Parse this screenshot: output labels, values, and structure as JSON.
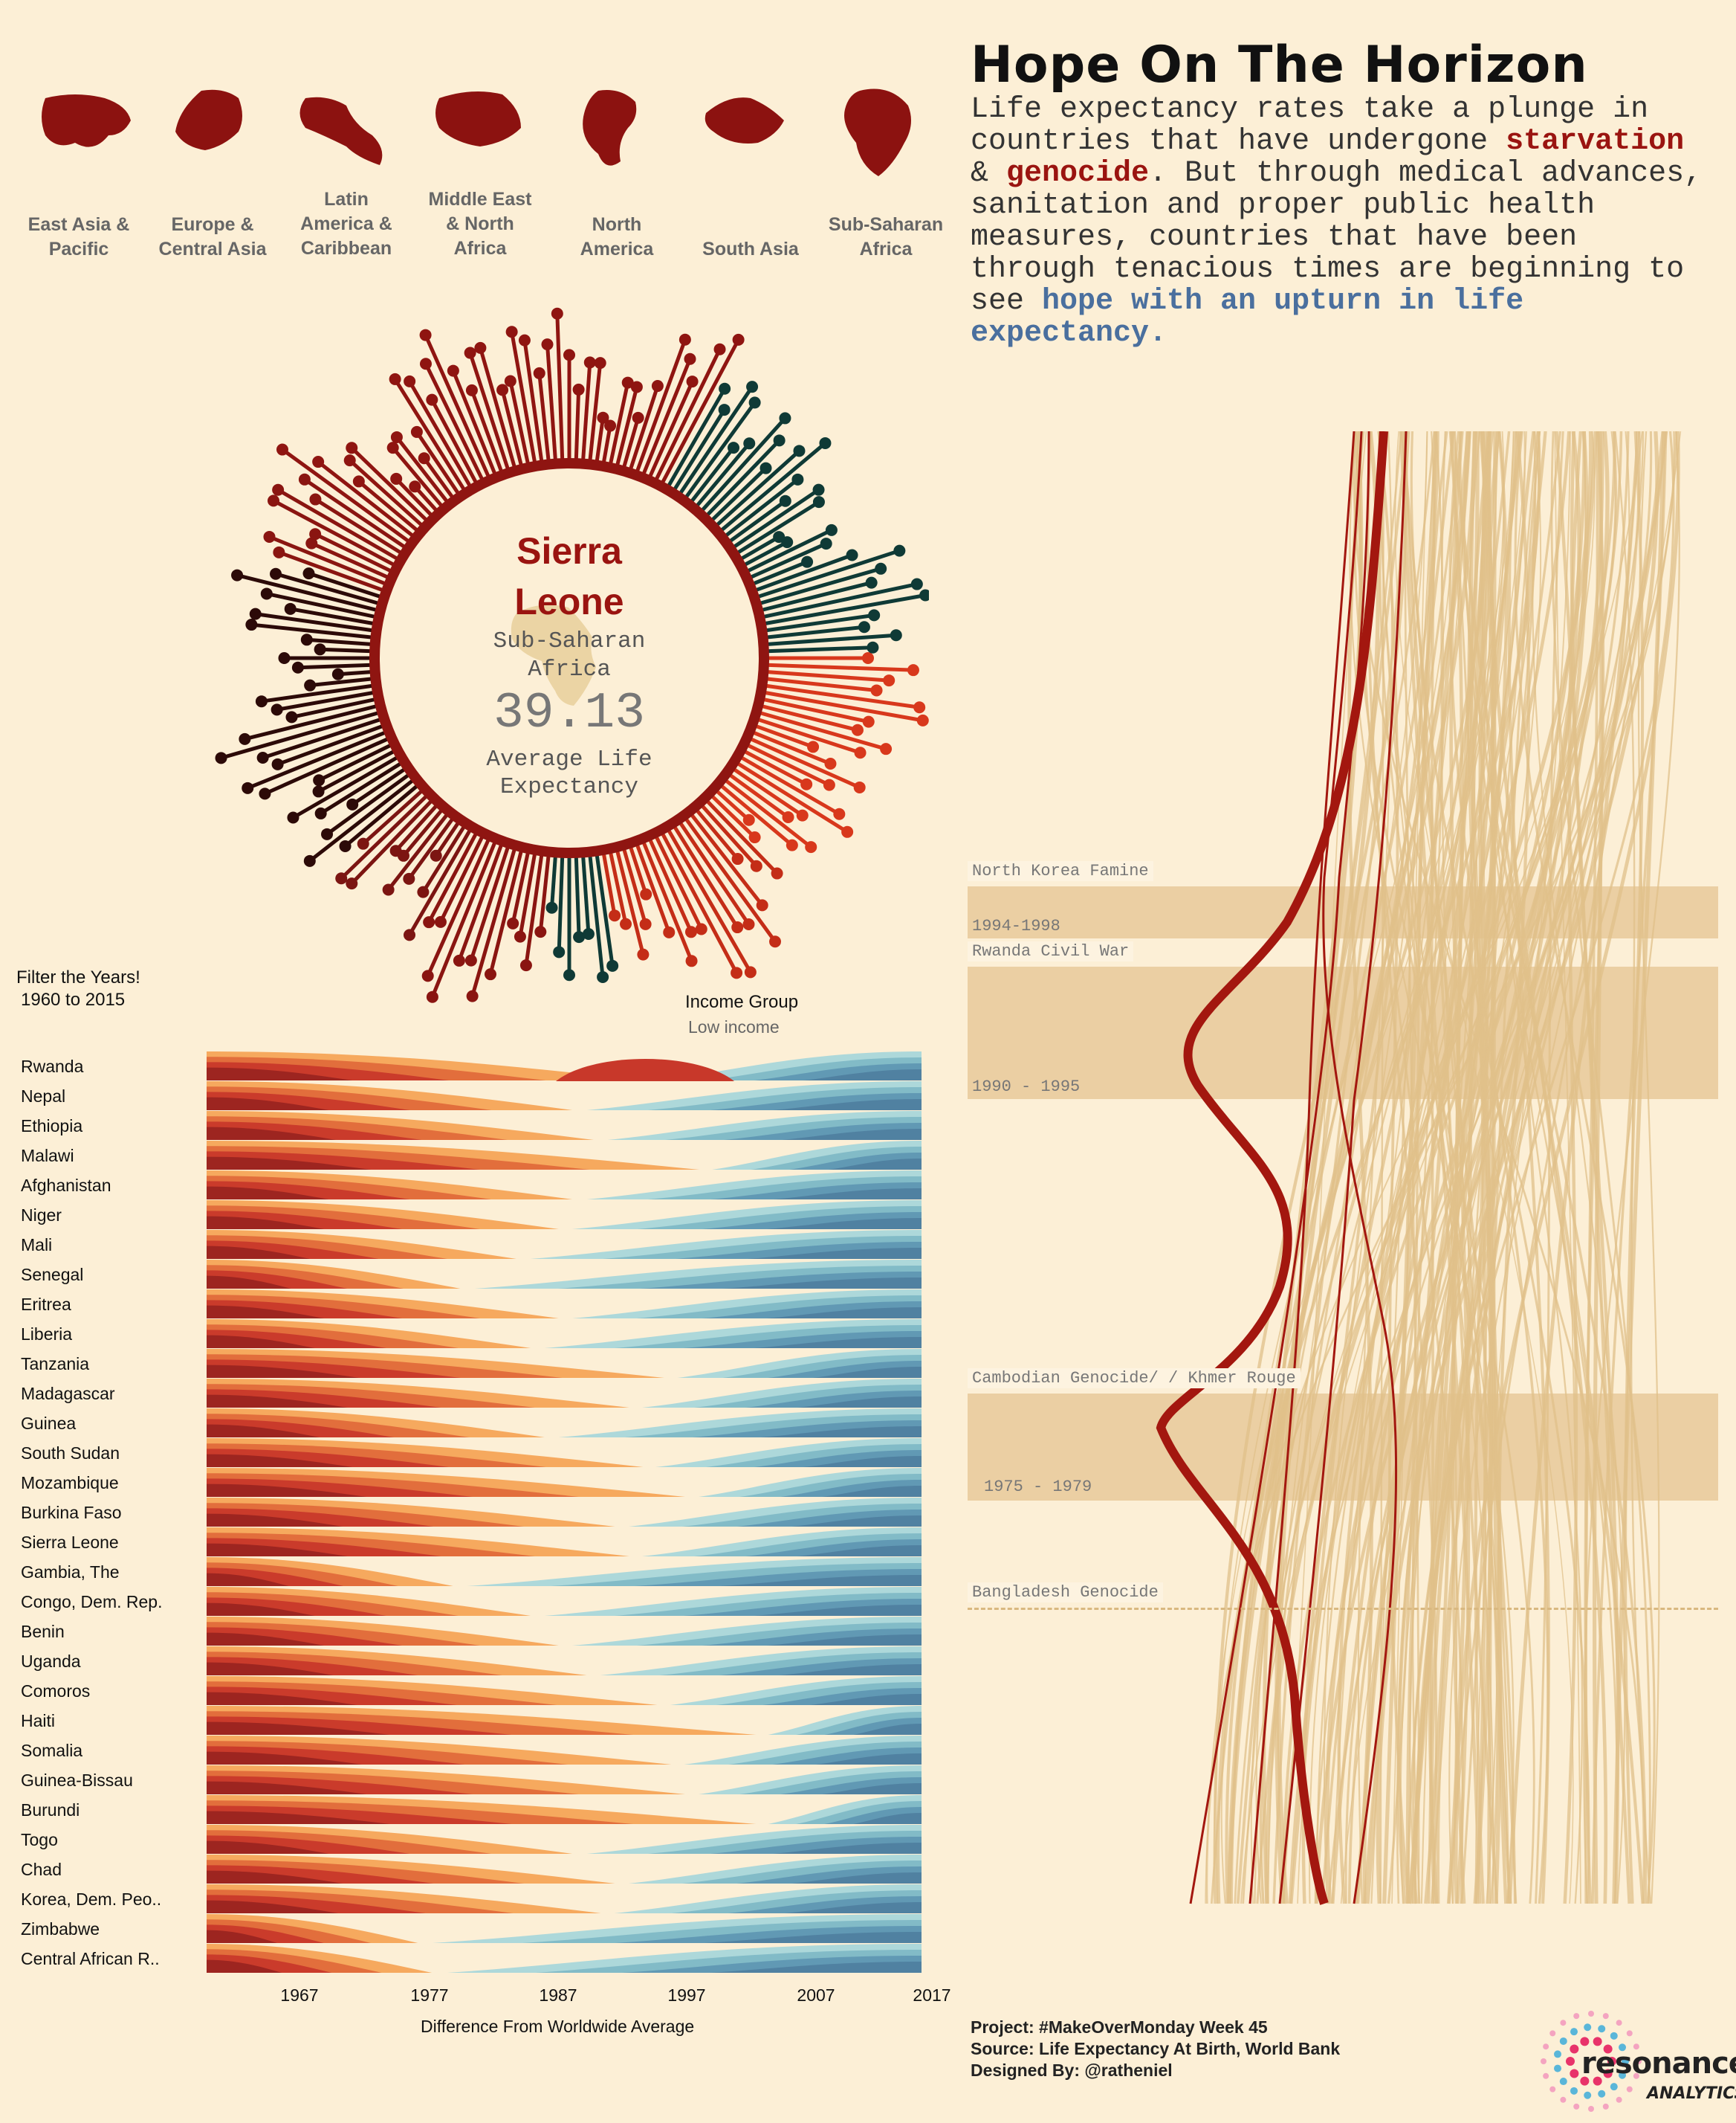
{
  "header": {
    "title": "Hope On The Horizon",
    "intro_p1": "Life expectancy rates take a plunge in countries that have undergone ",
    "intro_starvation": "starvation",
    "intro_amp": " & ",
    "intro_genocide": "genocide",
    "intro_p2": ". But through medical advances, sanitation and proper public health measures, countries that have been through tenacious times are beginning to see ",
    "intro_hope": "hope with an upturn in life expectancy."
  },
  "regions": [
    {
      "label1": "East Asia &",
      "label2": "Pacific",
      "icon": "asia-map-icon"
    },
    {
      "label1": "Europe &",
      "label2": "Central Asia",
      "icon": "europe-map-icon"
    },
    {
      "label1": "Latin",
      "label2": "America &",
      "label3": "Caribbean",
      "icon": "latin-america-map-icon"
    },
    {
      "label1": "Middle East",
      "label2": "& North",
      "label3": "Africa",
      "icon": "middle-east-map-icon"
    },
    {
      "label1": "North",
      "label2": "America",
      "icon": "north-america-map-icon"
    },
    {
      "label1": "South Asia",
      "icon": "south-asia-map-icon"
    },
    {
      "label1": "Sub-Saharan",
      "label2": "Africa",
      "icon": "africa-map-icon"
    }
  ],
  "radial": {
    "country_line1": "Sierra",
    "country_line2": "Leone",
    "region_line1": "Sub-Saharan",
    "region_line2": "Africa",
    "value": "39.13",
    "metric_line1": "Average Life",
    "metric_line2": "Expectancy"
  },
  "filter": {
    "line1": "Filter the Years!",
    "line2": "1960 to 2015"
  },
  "income": {
    "label": "Income Group",
    "value": "Low income"
  },
  "chart_data": {
    "type": "area",
    "xlabel": "Difference From Worldwide Average",
    "xticks": [
      "1967",
      "1977",
      "1987",
      "1997",
      "2007",
      "2017"
    ],
    "countries": [
      "Rwanda",
      "Nepal",
      "Ethiopia",
      "Malawi",
      "Afghanistan",
      "Niger",
      "Mali",
      "Senegal",
      "Eritrea",
      "Liberia",
      "Tanzania",
      "Madagascar",
      "Guinea",
      "South Sudan",
      "Mozambique",
      "Burkina Faso",
      "Sierra Leone",
      "Gambia, The",
      "Congo, Dem. Rep.",
      "Benin",
      "Uganda",
      "Comoros",
      "Haiti",
      "Somalia",
      "Guinea-Bissau",
      "Burundi",
      "Togo",
      "Chad",
      "Korea, Dem. Peo..",
      "Zimbabwe",
      "Central African R.."
    ],
    "crossover": [
      0.62,
      0.52,
      0.55,
      0.7,
      0.52,
      0.5,
      0.44,
      0.36,
      0.5,
      0.46,
      0.65,
      0.6,
      0.48,
      0.62,
      0.68,
      0.58,
      0.6,
      0.35,
      0.46,
      0.5,
      0.54,
      0.64,
      0.78,
      0.66,
      0.68,
      0.78,
      0.52,
      0.58,
      0.56,
      0.3,
      0.32
    ]
  },
  "events": [
    {
      "name": "North Korea Famine",
      "years": "1994-1998"
    },
    {
      "name": "Rwanda Civil War",
      "years": "1990 - 1995"
    },
    {
      "name": "Cambodian Genocide/ / Khmer Rouge",
      "years": "1975 - 1979"
    },
    {
      "name": "Bangladesh Genocide"
    }
  ],
  "footer": {
    "line1": "Project: #MakeOverMonday Week 45",
    "line2": "Source: Life Expectancy At Birth, World Bank",
    "line3": "Designed By: @ratheniel"
  },
  "logo": {
    "word1": "resonance",
    "word2": "ANALYTICS"
  },
  "colors": {
    "red": "#9a1410",
    "orange": "#f09a4e",
    "teal": "#86c1c9",
    "blue": "#4f7fa0",
    "tan": "#e0c08a"
  }
}
